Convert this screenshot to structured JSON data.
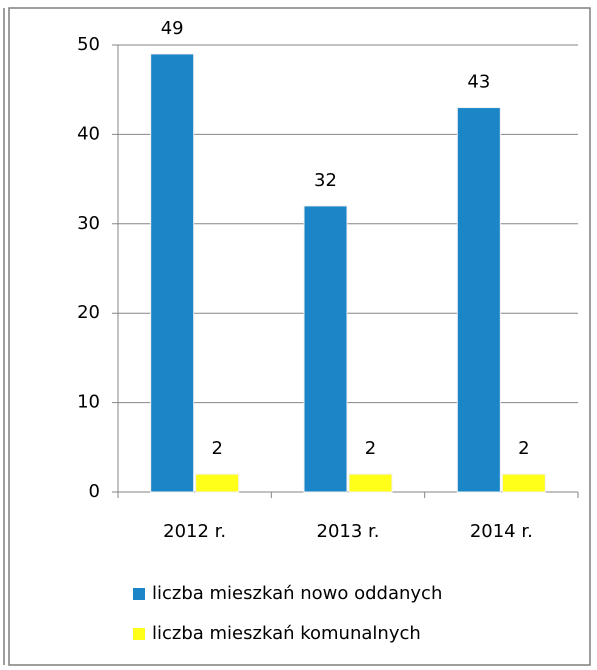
{
  "chart_data": {
    "type": "bar",
    "categories": [
      "2012 r.",
      "2013 r.",
      "2014 r."
    ],
    "series": [
      {
        "name": "liczba mieszkań nowo oddanych",
        "color": "#1a86c8",
        "values": [
          49,
          32,
          43
        ]
      },
      {
        "name": "liczba mieszkań komunalnych",
        "color": "#ffff1a",
        "values": [
          2,
          2,
          2
        ]
      }
    ],
    "ylim": [
      0,
      50
    ],
    "yticks": [
      0,
      10,
      20,
      30,
      40,
      50
    ],
    "grid": true,
    "legend": "bottom"
  }
}
